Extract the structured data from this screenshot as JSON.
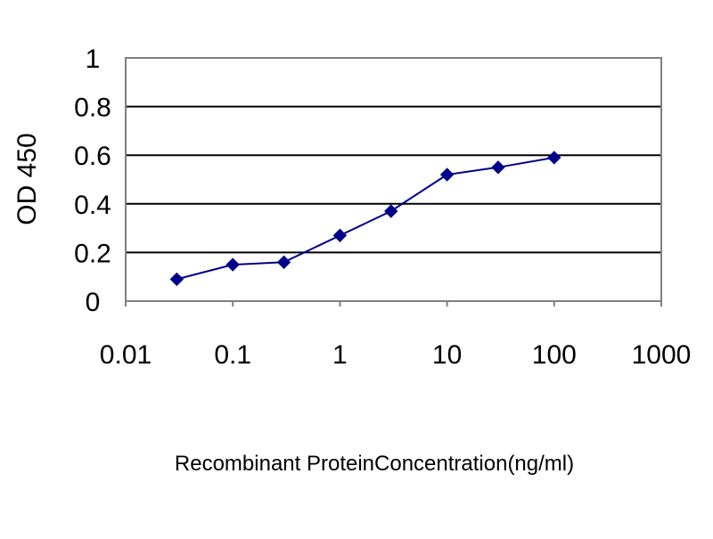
{
  "chart_data": {
    "type": "line",
    "title": "",
    "xlabel": "Recombinant ProteinConcentration(ng/ml)",
    "ylabel": "OD 450",
    "x_scale": "log",
    "xlim": [
      0.01,
      1000
    ],
    "ylim": [
      0,
      1
    ],
    "grid": "horizontal",
    "x_ticks": [
      "0.01",
      "0.1",
      "1",
      "10",
      "100",
      "1000"
    ],
    "y_ticks": [
      "0",
      "0.2",
      "0.4",
      "0.6",
      "0.8",
      "1"
    ],
    "series": [
      {
        "color": "#00008B",
        "marker": "diamond",
        "x": [
          0.03,
          0.1,
          0.3,
          1,
          3,
          10,
          30,
          100
        ],
        "y": [
          0.09,
          0.15,
          0.16,
          0.27,
          0.37,
          0.52,
          0.55,
          0.59
        ]
      }
    ]
  }
}
